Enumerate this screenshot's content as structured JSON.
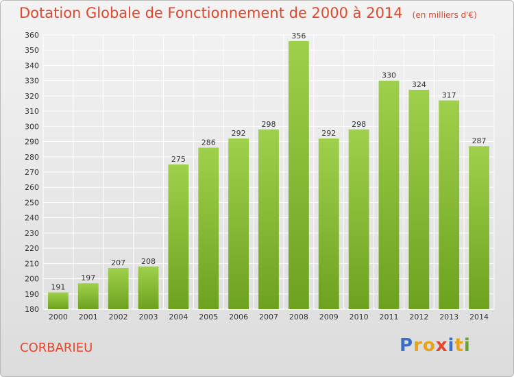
{
  "header": {
    "title": "Dotation Globale de Fonctionnement de 2000 à 2014",
    "unit": "(en milliers d'€)"
  },
  "footer": {
    "commune": "CORBARIEU",
    "brand_letters": [
      "P",
      "r",
      "o",
      "x",
      "i",
      "t",
      "i"
    ],
    "brand_colors": [
      "#3a6fc4",
      "#e8a21c",
      "#e8a21c",
      "#e2462b",
      "#3a6fc4",
      "#e8a21c",
      "#6aa32c"
    ]
  },
  "colors": {
    "bar_light": "#9fd04c",
    "bar_dark": "#6da21e",
    "grid": "#ffffff",
    "axis_text": "#333333",
    "title": "#e2462b"
  },
  "chart_data": {
    "type": "bar",
    "title": "Dotation Globale de Fonctionnement de 2000 à 2014",
    "subtitle": "(en milliers d'€)",
    "categories": [
      "2000",
      "2001",
      "2002",
      "2003",
      "2004",
      "2005",
      "2006",
      "2007",
      "2008",
      "2009",
      "2010",
      "2011",
      "2012",
      "2013",
      "2014"
    ],
    "values": [
      191,
      197,
      207,
      208,
      275,
      286,
      292,
      298,
      356,
      292,
      298,
      330,
      324,
      317,
      287
    ],
    "ylim": [
      180,
      360
    ],
    "ytick_step": 10,
    "grid": true,
    "data_labels": true
  }
}
